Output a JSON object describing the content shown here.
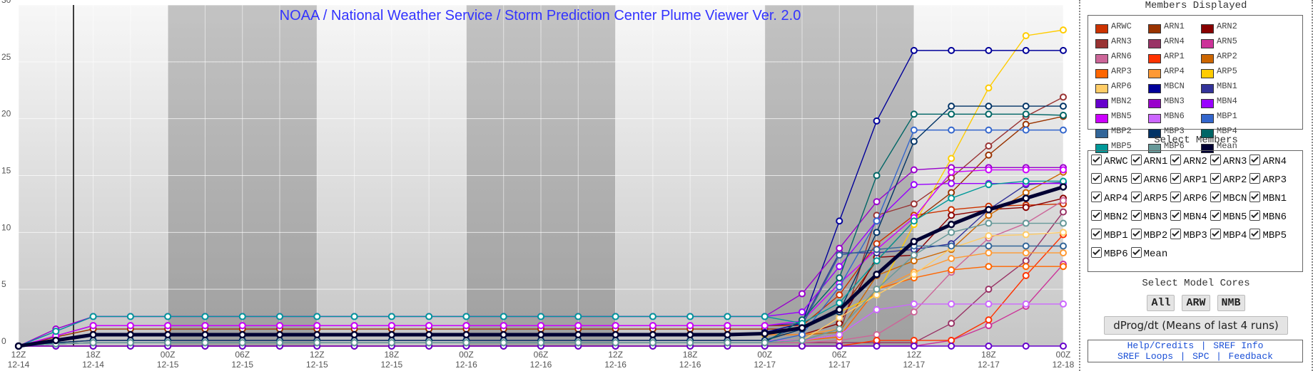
{
  "chart_data": {
    "type": "line",
    "title": "NOAA / National Weather Service / Storm Prediction Center Plume Viewer Ver. 2.0",
    "categories": [
      "12Z",
      null,
      "18Z",
      null,
      "00Z",
      null,
      "06Z",
      null,
      "12Z",
      null,
      "18Z",
      null,
      "00Z",
      null,
      "06Z",
      null,
      "12Z",
      null,
      "18Z",
      null,
      "00Z",
      null,
      "06Z",
      null,
      "12Z",
      null,
      "18Z",
      null,
      "00Z"
    ],
    "category_dates": [
      "12-14",
      null,
      "12-14",
      null,
      "12-15",
      null,
      "12-15",
      null,
      "12-15",
      null,
      "12-15",
      null,
      "12-16",
      null,
      "12-16",
      null,
      "12-16",
      null,
      "12-16",
      null,
      "12-17",
      null,
      "12-17",
      null,
      "12-17",
      null,
      "12-17",
      null,
      "12-18"
    ],
    "ylim": [
      0,
      30
    ],
    "yticks": [
      0,
      5,
      10,
      15,
      20,
      25,
      30
    ],
    "grid": true,
    "series": [
      {
        "name": "ARWC",
        "color": "#cc3300",
        "values": [
          0,
          0.9,
          1.8,
          1.8,
          1.8,
          1.8,
          1.8,
          1.8,
          1.8,
          1.8,
          1.8,
          1.8,
          1.8,
          1.8,
          1.8,
          1.8,
          1.8,
          1.8,
          1.8,
          1.8,
          1.8,
          1.8,
          4.5,
          9,
          11.5,
          12,
          12.3,
          12.4,
          12.5
        ]
      },
      {
        "name": "ARN1",
        "color": "#993300",
        "values": [
          0,
          0.8,
          1.5,
          1.5,
          1.5,
          1.5,
          1.5,
          1.5,
          1.5,
          1.5,
          1.5,
          1.5,
          1.5,
          1.5,
          1.5,
          1.5,
          1.5,
          1.5,
          1.5,
          1.5,
          1.5,
          1.5,
          3,
          7.5,
          11,
          13.5,
          16.8,
          19.5,
          20.2
        ]
      },
      {
        "name": "ARN2",
        "color": "#880000",
        "values": [
          0,
          0.5,
          1,
          1,
          1,
          1,
          1,
          1,
          1,
          1,
          1,
          1,
          1,
          1,
          1,
          1,
          1,
          1,
          1,
          1,
          1,
          1,
          2,
          7.8,
          8,
          11.5,
          12,
          12.2,
          13
        ]
      },
      {
        "name": "ARN3",
        "color": "#993333",
        "values": [
          0,
          0.3,
          0.5,
          0.5,
          0.5,
          0.5,
          0.5,
          0.5,
          0.5,
          0.5,
          0.5,
          0.5,
          0.5,
          0.5,
          0.5,
          0.5,
          0.5,
          0.5,
          0.5,
          0.5,
          0.5,
          0.5,
          1,
          11.5,
          12.5,
          14.8,
          17.6,
          20.2,
          21.9
        ]
      },
      {
        "name": "ARN4",
        "color": "#993366",
        "values": [
          0,
          0.2,
          0.3,
          0.3,
          0.3,
          0.3,
          0.3,
          0.3,
          0.3,
          0.3,
          0.3,
          0.3,
          0.3,
          0.3,
          0.3,
          0.3,
          0.3,
          0.3,
          0.3,
          0.3,
          0.3,
          0.3,
          0.3,
          0.3,
          0.3,
          2,
          5,
          7.5,
          11.8
        ]
      },
      {
        "name": "ARN5",
        "color": "#cc3399",
        "values": [
          0,
          0,
          0,
          0,
          0,
          0,
          0,
          0,
          0,
          0,
          0,
          0,
          0,
          0,
          0,
          0,
          0,
          0,
          0,
          0,
          0,
          0,
          0,
          0,
          0,
          0.5,
          1.8,
          3.5,
          7.2
        ]
      },
      {
        "name": "ARN6",
        "color": "#cc6699",
        "values": [
          0,
          0.2,
          0.3,
          0.3,
          0.3,
          0.3,
          0.3,
          0.3,
          0.3,
          0.3,
          0.3,
          0.3,
          0.3,
          0.3,
          0.3,
          0.3,
          0.3,
          0.3,
          0.3,
          0.3,
          0.3,
          0.3,
          0.5,
          1,
          3,
          6.5,
          9.5,
          10.8,
          12.8
        ]
      },
      {
        "name": "ARP1",
        "color": "#ff3300",
        "values": [
          0,
          0,
          0,
          0,
          0,
          0,
          0,
          0,
          0,
          0,
          0,
          0,
          0,
          0,
          0,
          0,
          0,
          0,
          0,
          0,
          0,
          0,
          0,
          0.5,
          0.5,
          0.5,
          2.3,
          6.2,
          9.8
        ]
      },
      {
        "name": "ARP2",
        "color": "#cc6600",
        "values": [
          0,
          0.5,
          1,
          1,
          1,
          1,
          1,
          1,
          1,
          1,
          1,
          1,
          1,
          1,
          1,
          1,
          1,
          1,
          1,
          1,
          1,
          1,
          1.2,
          6.2,
          7.5,
          8.5,
          11.5,
          13.5,
          15.3
        ]
      },
      {
        "name": "ARP3",
        "color": "#ff6600",
        "values": [
          0,
          0.3,
          0.5,
          0.5,
          0.5,
          0.5,
          0.5,
          0.5,
          0.5,
          0.5,
          0.5,
          0.5,
          0.5,
          0.5,
          0.5,
          0.5,
          0.5,
          0.5,
          0.5,
          0.5,
          0.5,
          0.5,
          0.8,
          5,
          6,
          6.7,
          7,
          7,
          7
        ]
      },
      {
        "name": "ARP4",
        "color": "#ff9933",
        "values": [
          0,
          0.5,
          1,
          1,
          1,
          1,
          1,
          1,
          1,
          1,
          1,
          1,
          1,
          1,
          1,
          1,
          1,
          1,
          1,
          1,
          1,
          1,
          1.5,
          5,
          6.5,
          7.7,
          8.2,
          8.2,
          8.2
        ]
      },
      {
        "name": "ARP5",
        "color": "#ffcc00",
        "values": [
          0,
          0.5,
          1,
          1,
          1,
          1,
          1,
          1,
          1,
          1,
          1,
          1,
          1,
          1,
          1,
          1,
          1,
          1,
          1,
          1,
          1,
          1.5,
          3,
          4.5,
          10.7,
          16.5,
          22.7,
          27.3,
          27.8
        ]
      },
      {
        "name": "ARP6",
        "color": "#ffcc66",
        "values": [
          0,
          0.2,
          0.3,
          0.3,
          0.3,
          0.3,
          0.3,
          0.3,
          0.3,
          0.3,
          0.3,
          0.3,
          0.3,
          0.3,
          0.3,
          0.3,
          0.3,
          0.3,
          0.3,
          0.3,
          0.3,
          0.5,
          2.5,
          4.5,
          6.3,
          8.6,
          9.7,
          9.8,
          10
        ]
      },
      {
        "name": "MBCN",
        "color": "#000099",
        "values": [
          0,
          0.5,
          1,
          1,
          1,
          1,
          1,
          1,
          1,
          1,
          1,
          1,
          1,
          1,
          1,
          1,
          1,
          1,
          1,
          1,
          1.2,
          2,
          11,
          19.8,
          26,
          26,
          26,
          26,
          26
        ]
      },
      {
        "name": "MBN1",
        "color": "#333399",
        "values": [
          0,
          0.9,
          1.8,
          1.8,
          1.8,
          1.8,
          1.8,
          1.8,
          1.8,
          1.8,
          1.8,
          1.8,
          1.8,
          1.8,
          1.8,
          1.8,
          1.8,
          1.8,
          1.8,
          1.8,
          1.8,
          2,
          8.2,
          8.2,
          8.5,
          9,
          12,
          14.2,
          14.4
        ]
      },
      {
        "name": "MBN2",
        "color": "#6600cc",
        "values": [
          0,
          0,
          0,
          0,
          0,
          0,
          0,
          0,
          0,
          0,
          0,
          0,
          0,
          0,
          0,
          0,
          0,
          0,
          0,
          0,
          0,
          0,
          0,
          0,
          0,
          0,
          0,
          0,
          0
        ]
      },
      {
        "name": "MBN3",
        "color": "#9900cc",
        "values": [
          0,
          1.5,
          2.6,
          2.6,
          2.6,
          2.6,
          2.6,
          2.6,
          2.6,
          2.6,
          2.6,
          2.6,
          2.6,
          2.6,
          2.6,
          2.6,
          2.6,
          2.6,
          2.6,
          2.6,
          2.6,
          4.6,
          8.6,
          12.7,
          15.5,
          15.7,
          15.7,
          15.7,
          15.7
        ]
      },
      {
        "name": "MBN4",
        "color": "#9900ff",
        "values": [
          0,
          1.3,
          2.6,
          2.6,
          2.6,
          2.6,
          2.6,
          2.6,
          2.6,
          2.6,
          2.6,
          2.6,
          2.6,
          2.6,
          2.6,
          2.6,
          2.6,
          2.6,
          2.6,
          2.6,
          2.6,
          3,
          7,
          11,
          14.2,
          14.3,
          14.3,
          14.3,
          14.3
        ]
      },
      {
        "name": "MBN5",
        "color": "#cc00ff",
        "values": [
          0,
          0.9,
          1.8,
          1.8,
          1.8,
          1.8,
          1.8,
          1.8,
          1.8,
          1.8,
          1.8,
          1.8,
          1.8,
          1.8,
          1.8,
          1.8,
          1.8,
          1.8,
          1.8,
          1.8,
          1.8,
          2.2,
          5.5,
          8.5,
          11.3,
          15.3,
          15.5,
          15.5,
          15.5
        ]
      },
      {
        "name": "MBN6",
        "color": "#cc66ff",
        "values": [
          0,
          0.3,
          0.5,
          0.5,
          0.5,
          0.5,
          0.5,
          0.5,
          0.5,
          0.5,
          0.5,
          0.5,
          0.5,
          0.5,
          0.5,
          0.5,
          0.5,
          0.5,
          0.5,
          0.5,
          0.5,
          0.5,
          1,
          3.2,
          3.7,
          3.7,
          3.7,
          3.7,
          3.7
        ]
      },
      {
        "name": "MBP1",
        "color": "#3366cc",
        "values": [
          0,
          0.2,
          0.3,
          0.3,
          0.3,
          0.3,
          0.3,
          0.3,
          0.3,
          0.3,
          0.3,
          0.3,
          0.3,
          0.3,
          0.3,
          0.3,
          0.3,
          0.3,
          0.3,
          0.3,
          0.3,
          1,
          5.2,
          11,
          19,
          19,
          19,
          19,
          19
        ]
      },
      {
        "name": "MBP2",
        "color": "#336699",
        "values": [
          0,
          0.3,
          0.5,
          0.5,
          0.5,
          0.5,
          0.5,
          0.5,
          0.5,
          0.5,
          0.5,
          0.5,
          0.5,
          0.5,
          0.5,
          0.5,
          0.5,
          0.5,
          0.5,
          0.5,
          0.5,
          1.8,
          8,
          8.5,
          8.8,
          8.8,
          8.8,
          8.8,
          8.8
        ]
      },
      {
        "name": "MBP3",
        "color": "#003366",
        "values": [
          0,
          0.3,
          0.5,
          0.5,
          0.5,
          0.5,
          0.5,
          0.5,
          0.5,
          0.5,
          0.5,
          0.5,
          0.5,
          0.5,
          0.5,
          0.5,
          0.5,
          0.5,
          0.5,
          0.5,
          0.5,
          1.5,
          3,
          10,
          18,
          21.1,
          21.1,
          21.1,
          21.1
        ]
      },
      {
        "name": "MBP4",
        "color": "#006666",
        "values": [
          0,
          0.2,
          0.3,
          0.3,
          0.3,
          0.3,
          0.3,
          0.3,
          0.3,
          0.3,
          0.3,
          0.3,
          0.3,
          0.3,
          0.3,
          0.3,
          0.3,
          0.3,
          0.3,
          0.3,
          0.3,
          2.3,
          6,
          15,
          20.4,
          20.4,
          20.4,
          20.4,
          20.3
        ]
      },
      {
        "name": "MBP5",
        "color": "#009999",
        "values": [
          0,
          1.3,
          2.6,
          2.6,
          2.6,
          2.6,
          2.6,
          2.6,
          2.6,
          2.6,
          2.6,
          2.6,
          2.6,
          2.6,
          2.6,
          2.6,
          2.6,
          2.6,
          2.6,
          2.6,
          2.6,
          2,
          3.8,
          7.5,
          11,
          13,
          14.2,
          14.5,
          14.5
        ]
      },
      {
        "name": "MBP6",
        "color": "#669999",
        "values": [
          0,
          0.2,
          0.3,
          0.3,
          0.3,
          0.3,
          0.3,
          0.3,
          0.3,
          0.3,
          0.3,
          0.3,
          0.3,
          0.3,
          0.3,
          0.3,
          0.3,
          0.3,
          0.3,
          0.3,
          0.3,
          0.5,
          1.5,
          5,
          8,
          10,
          10.8,
          10.8,
          10.8
        ]
      },
      {
        "name": "Mean",
        "color": "#000033",
        "values": [
          0,
          0.5,
          1,
          1,
          1,
          1,
          1,
          1,
          1,
          1,
          1,
          1,
          1,
          1,
          1,
          1,
          1,
          1,
          1,
          1,
          1.1,
          1.6,
          3.2,
          6.3,
          9.2,
          10.7,
          12,
          13,
          14
        ]
      }
    ]
  },
  "panel": {
    "members_heading": "Members Displayed",
    "select_heading": "Select Members",
    "cores_heading": "Select Model Cores",
    "core_buttons": [
      "All",
      "ARW",
      "NMB"
    ],
    "dprog_button": "dProg/dt (Means of last 4 runs)",
    "links": [
      "Help/Credits",
      "SREF Info",
      "SREF Loops",
      "SPC",
      "Feedback"
    ],
    "separator": "|"
  }
}
